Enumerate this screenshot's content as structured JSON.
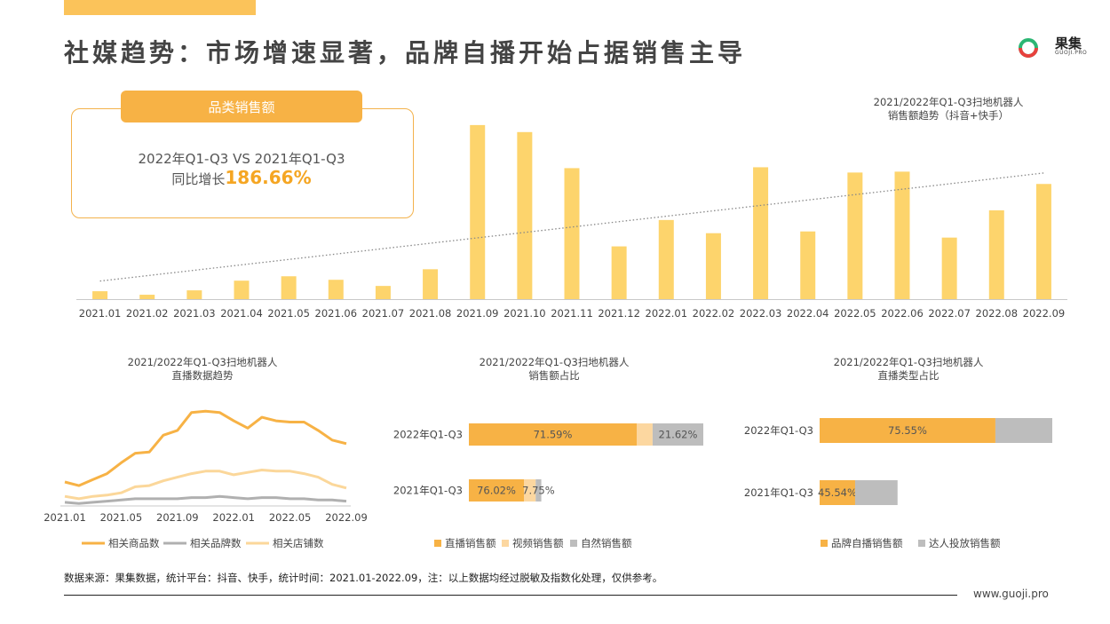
{
  "title": "社媒趋势：市场增速显著，品牌自播开始占据销售主导",
  "logo": {
    "name": "果集",
    "sub": "GUOJI.PRO"
  },
  "kpi": {
    "tag": "品类销售额",
    "line1": "2022年Q1-Q3 VS 2021年Q1-Q3",
    "prefix": "同比增长",
    "value": "186.66%"
  },
  "colors": {
    "accent": "#fbc35a",
    "orange": "#f7b245",
    "light": "#fde0a8",
    "gray": "#bdbdbd",
    "darkgray": "#a8a8a8"
  },
  "chart_data": [
    {
      "type": "bar",
      "title": "2021/2022年Q1-Q3扫地机器人",
      "subtitle": "销售额趋势（抖音+快手）",
      "categories": [
        "2021.01",
        "2021.02",
        "2021.03",
        "2021.04",
        "2021.05",
        "2021.06",
        "2021.07",
        "2021.08",
        "2021.09",
        "2021.10",
        "2021.11",
        "2021.12",
        "2022.01",
        "2022.02",
        "2022.03",
        "2022.04",
        "2022.05",
        "2022.06",
        "2022.07",
        "2022.08",
        "2022.09"
      ],
      "values": [
        9,
        5,
        10,
        21,
        26,
        22,
        15,
        34,
        198,
        190,
        149,
        60,
        90,
        75,
        150,
        77,
        144,
        145,
        70,
        101,
        131
      ],
      "ylim": [
        0,
        210
      ],
      "trendline": true,
      "color": "#fdd46c"
    },
    {
      "type": "line",
      "title": "2021/2022年Q1-Q3扫地机器人",
      "subtitle": "直播数据趋势",
      "x": [
        "2021.01",
        "2021.02",
        "2021.03",
        "2021.04",
        "2021.05",
        "2021.06",
        "2021.07",
        "2021.08",
        "2021.09",
        "2021.10",
        "2021.11",
        "2021.12",
        "2022.01",
        "2022.02",
        "2022.03",
        "2022.04",
        "2022.05",
        "2022.06",
        "2022.07",
        "2022.08",
        "2022.09"
      ],
      "tick_labels": [
        "2021.01",
        "2021.05",
        "2021.09",
        "2022.01",
        "2022.05",
        "2022.09"
      ],
      "ylim": [
        0,
        100
      ],
      "series": [
        {
          "name": "相关商品数",
          "color": "#f7b245",
          "values": [
            20,
            17,
            22,
            27,
            36,
            44,
            45,
            59,
            63,
            78,
            79,
            78,
            71,
            65,
            74,
            71,
            70,
            70,
            63,
            55,
            52
          ]
        },
        {
          "name": "相关品牌数",
          "color": "#b0b0b0",
          "values": [
            3,
            2,
            3,
            4,
            5,
            6,
            6,
            6,
            6,
            7,
            7,
            8,
            7,
            6,
            7,
            7,
            6,
            6,
            5,
            5,
            4
          ]
        },
        {
          "name": "相关店铺数",
          "color": "#fbd79a",
          "values": [
            8,
            6,
            8,
            9,
            11,
            16,
            17,
            21,
            24,
            27,
            29,
            29,
            26,
            28,
            30,
            29,
            29,
            27,
            24,
            18,
            15
          ]
        }
      ]
    },
    {
      "type": "bar",
      "orientation": "horizontal-stacked",
      "title": "2021/2022年Q1-Q3扫地机器人",
      "subtitle": "销售额占比",
      "categories": [
        "2022年Q1-Q3",
        "2021年Q1-Q3"
      ],
      "series": [
        {
          "name": "直播销售额",
          "color": "#f7b245",
          "values": [
            71.59,
            76.02
          ]
        },
        {
          "name": "视频销售额",
          "color": "#fcd7a0",
          "values": [
            6.79,
            16.23
          ]
        },
        {
          "name": "自然销售额",
          "color": "#bdbdbd",
          "values": [
            21.62,
            7.75
          ]
        }
      ],
      "labels": [
        [
          "71.59%",
          "",
          "21.62%"
        ],
        [
          "76.02%",
          "",
          "7.75%"
        ]
      ],
      "scale_max": [
        100,
        30.9
      ]
    },
    {
      "type": "bar",
      "orientation": "horizontal-stacked",
      "title": "2021/2022年Q1-Q3扫地机器人",
      "subtitle": "直播类型占比",
      "categories": [
        "2022年Q1-Q3",
        "2021年Q1-Q3"
      ],
      "series": [
        {
          "name": "品牌自播销售额",
          "color": "#f7b245",
          "values": [
            75.55,
            45.54
          ]
        },
        {
          "name": "达人投放销售额",
          "color": "#bdbdbd",
          "values": [
            24.45,
            54.46
          ]
        }
      ],
      "labels": [
        [
          "75.55%",
          ""
        ],
        [
          "45.54%",
          ""
        ]
      ],
      "scale_max": [
        100,
        33.5
      ]
    }
  ],
  "footer": {
    "note": "数据来源：果集数据，统计平台：抖音、快手，统计时间：2021.01-2022.09，注：以上数据均经过脱敏及指数化处理，仅供参考。",
    "url": "www.guoji.pro"
  }
}
